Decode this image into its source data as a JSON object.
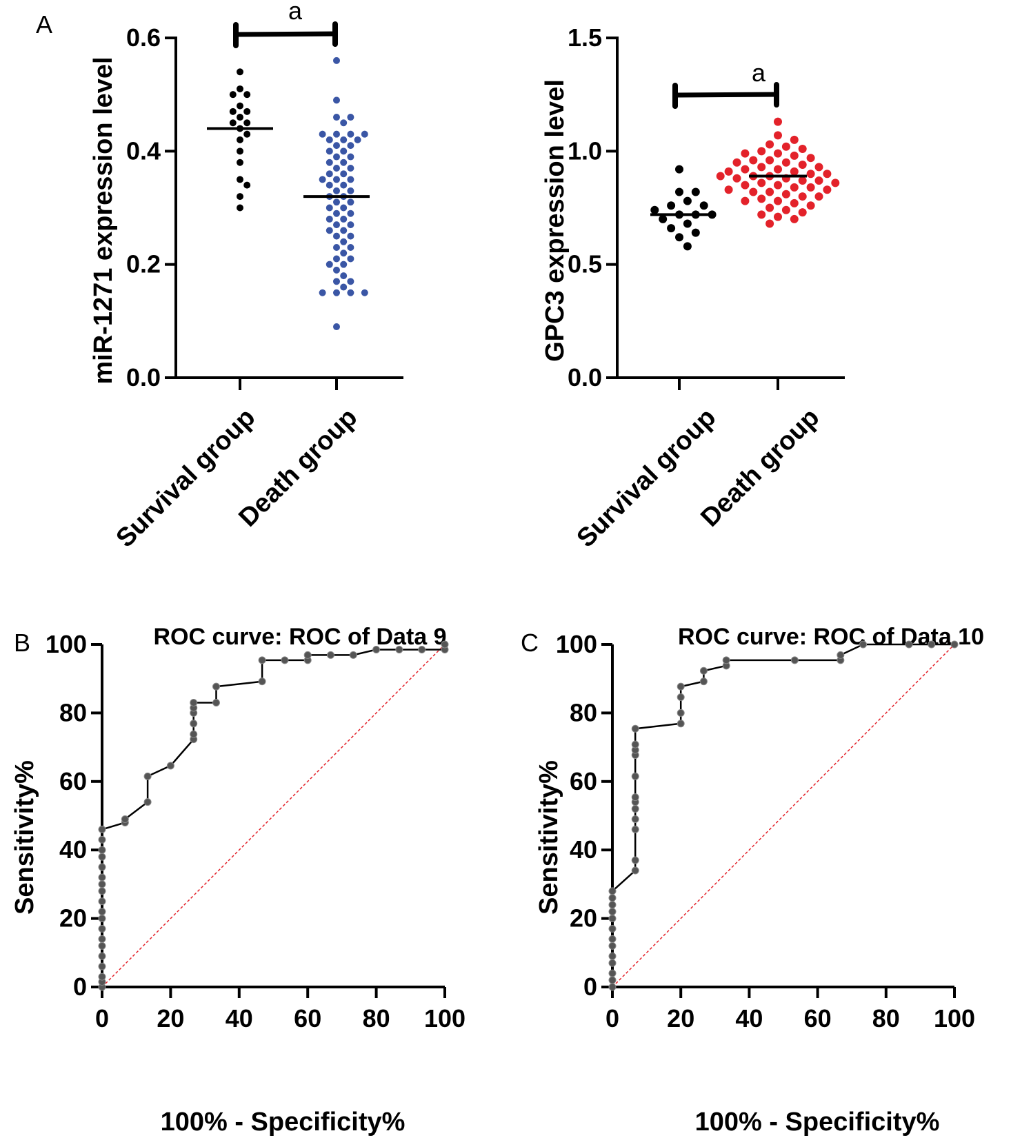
{
  "panel_letters": [
    "A",
    "B",
    "C"
  ],
  "chart_data": [
    {
      "type": "scatter",
      "panel": "A",
      "ylabel": "miR-1271 expression level",
      "categories": [
        "Survival group",
        "Death group"
      ],
      "ylim": [
        0,
        0.6
      ],
      "yticks": [
        "0.0",
        "0.2",
        "0.4",
        "0.6"
      ],
      "significance": "a",
      "dot_colors": [
        "#000000",
        "#3a56a5"
      ],
      "median": [
        0.44,
        0.32
      ],
      "series": [
        {
          "name": "Survival group",
          "values": [
            0.54,
            0.51,
            0.5,
            0.5,
            0.48,
            0.47,
            0.47,
            0.46,
            0.45,
            0.45,
            0.44,
            0.43,
            0.42,
            0.4,
            0.38,
            0.35,
            0.34,
            0.32,
            0.3
          ]
        },
        {
          "name": "Death group",
          "values": [
            0.56,
            0.49,
            0.46,
            0.46,
            0.45,
            0.43,
            0.43,
            0.43,
            0.43,
            0.42,
            0.42,
            0.42,
            0.41,
            0.41,
            0.4,
            0.4,
            0.39,
            0.39,
            0.38,
            0.38,
            0.37,
            0.37,
            0.36,
            0.36,
            0.35,
            0.35,
            0.35,
            0.34,
            0.34,
            0.33,
            0.33,
            0.32,
            0.32,
            0.31,
            0.31,
            0.3,
            0.3,
            0.29,
            0.29,
            0.28,
            0.28,
            0.27,
            0.27,
            0.26,
            0.26,
            0.25,
            0.25,
            0.24,
            0.23,
            0.23,
            0.22,
            0.21,
            0.21,
            0.2,
            0.2,
            0.19,
            0.18,
            0.17,
            0.17,
            0.16,
            0.15,
            0.15,
            0.15,
            0.15,
            0.09
          ]
        }
      ]
    },
    {
      "type": "scatter",
      "panel": "A",
      "ylabel": "GPC3 expression level",
      "categories": [
        "Survival group",
        "Death group"
      ],
      "ylim": [
        0,
        1.5
      ],
      "yticks": [
        "0.0",
        "0.5",
        "1.0",
        "1.5"
      ],
      "significance": "a",
      "dot_colors": [
        "#000000",
        "#e3222a"
      ],
      "median": [
        0.72,
        0.89
      ],
      "series": [
        {
          "name": "Survival group",
          "values": [
            0.92,
            0.82,
            0.82,
            0.78,
            0.76,
            0.76,
            0.74,
            0.72,
            0.72,
            0.72,
            0.7,
            0.68,
            0.66,
            0.64,
            0.62,
            0.58
          ]
        },
        {
          "name": "Death group",
          "values": [
            1.13,
            1.07,
            1.05,
            1.03,
            1.02,
            1.01,
            1.0,
            0.99,
            0.99,
            0.98,
            0.97,
            0.96,
            0.96,
            0.95,
            0.95,
            0.94,
            0.93,
            0.93,
            0.92,
            0.92,
            0.91,
            0.91,
            0.9,
            0.9,
            0.89,
            0.89,
            0.89,
            0.88,
            0.88,
            0.87,
            0.87,
            0.86,
            0.86,
            0.85,
            0.85,
            0.84,
            0.84,
            0.83,
            0.83,
            0.82,
            0.82,
            0.81,
            0.8,
            0.8,
            0.79,
            0.78,
            0.78,
            0.77,
            0.76,
            0.75,
            0.74,
            0.73,
            0.72,
            0.71,
            0.7,
            0.68
          ]
        }
      ]
    },
    {
      "type": "line",
      "panel": "B",
      "title": "ROC curve: ROC of Data 9",
      "xlabel": "100% - Specificity%",
      "ylabel": "Sensitivity%",
      "xlim": [
        0,
        100
      ],
      "ylim": [
        0,
        100
      ],
      "xticks": [
        "0",
        "20",
        "40",
        "60",
        "80",
        "100"
      ],
      "yticks": [
        "0",
        "20",
        "40",
        "60",
        "80",
        "100"
      ],
      "line_color": "#000000",
      "ref_color": "#e3222a",
      "points": [
        [
          0,
          0
        ],
        [
          0,
          1.5
        ],
        [
          0,
          3
        ],
        [
          0,
          6
        ],
        [
          0,
          9
        ],
        [
          0,
          12
        ],
        [
          0,
          14
        ],
        [
          0,
          17
        ],
        [
          0,
          20
        ],
        [
          0,
          22
        ],
        [
          0,
          25
        ],
        [
          0,
          28
        ],
        [
          0,
          30
        ],
        [
          0,
          32
        ],
        [
          0,
          35
        ],
        [
          0,
          38
        ],
        [
          0,
          40
        ],
        [
          0,
          43
        ],
        [
          0,
          46
        ],
        [
          6.7,
          48
        ],
        [
          6.7,
          49
        ],
        [
          13.3,
          54
        ],
        [
          13.3,
          61.5
        ],
        [
          20,
          64.6
        ],
        [
          26.7,
          72.3
        ],
        [
          26.7,
          73.8
        ],
        [
          26.7,
          76.9
        ],
        [
          26.7,
          80
        ],
        [
          26.7,
          81.5
        ],
        [
          26.7,
          83
        ],
        [
          33.3,
          83
        ],
        [
          33.3,
          87.7
        ],
        [
          46.7,
          89.2
        ],
        [
          46.7,
          95.4
        ],
        [
          53.3,
          95.4
        ],
        [
          60,
          95.4
        ],
        [
          60,
          96.9
        ],
        [
          66.7,
          96.9
        ],
        [
          73.3,
          96.9
        ],
        [
          80,
          98.5
        ],
        [
          86.7,
          98.5
        ],
        [
          93.3,
          98.5
        ],
        [
          100,
          98.5
        ],
        [
          100,
          100
        ]
      ]
    },
    {
      "type": "line",
      "panel": "C",
      "title": "ROC curve: ROC of Data 10",
      "xlabel": "100% - Specificity%",
      "ylabel": "Sensitivity%",
      "xlim": [
        0,
        100
      ],
      "ylim": [
        0,
        100
      ],
      "xticks": [
        "0",
        "20",
        "40",
        "60",
        "80",
        "100"
      ],
      "yticks": [
        "0",
        "20",
        "40",
        "60",
        "80",
        "100"
      ],
      "line_color": "#000000",
      "ref_color": "#e3222a",
      "points": [
        [
          0,
          0
        ],
        [
          0,
          2
        ],
        [
          0,
          4
        ],
        [
          0,
          7
        ],
        [
          0,
          9
        ],
        [
          0,
          12
        ],
        [
          0,
          14
        ],
        [
          0,
          17
        ],
        [
          0,
          20
        ],
        [
          0,
          22
        ],
        [
          0,
          24
        ],
        [
          0,
          26
        ],
        [
          0,
          28
        ],
        [
          6.7,
          34
        ],
        [
          6.7,
          37
        ],
        [
          6.7,
          46
        ],
        [
          6.7,
          49
        ],
        [
          6.7,
          52
        ],
        [
          6.7,
          54
        ],
        [
          6.7,
          55.4
        ],
        [
          6.7,
          61.5
        ],
        [
          6.7,
          67.7
        ],
        [
          6.7,
          69.2
        ],
        [
          6.7,
          70.8
        ],
        [
          6.7,
          75.4
        ],
        [
          20,
          76.9
        ],
        [
          20,
          80
        ],
        [
          20,
          84.6
        ],
        [
          20,
          87.7
        ],
        [
          26.7,
          89.2
        ],
        [
          26.7,
          92.3
        ],
        [
          33.3,
          93.8
        ],
        [
          33.3,
          95.4
        ],
        [
          53.3,
          95.4
        ],
        [
          66.7,
          95.4
        ],
        [
          66.7,
          96.9
        ],
        [
          73.3,
          100
        ],
        [
          86.7,
          100
        ],
        [
          93.3,
          100
        ],
        [
          100,
          100
        ]
      ]
    }
  ]
}
